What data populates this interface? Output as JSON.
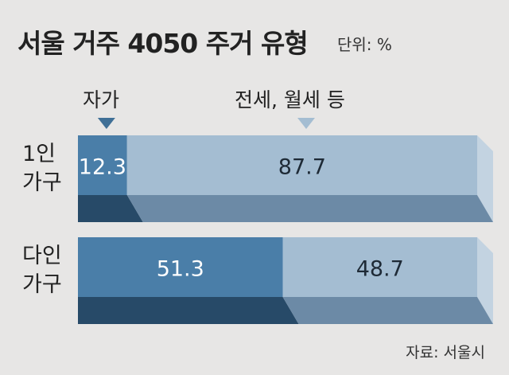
{
  "title": "서울 거주 4050 주거 유형",
  "unit": "단위: %",
  "source": "자료: 서울시",
  "colors": {
    "own_face": "#4a7ea8",
    "own_bottom": "#274a68",
    "rent_face": "#a4bdd2",
    "rent_bottom": "#6c8aa6",
    "rent_side": "#c3d3e1",
    "marker_own": "#3f6f96",
    "marker_rent": "#a4bdd2"
  },
  "chart_data": {
    "type": "bar",
    "stacked": true,
    "orientation": "horizontal",
    "categories": [
      "1인 가구",
      "다인 가구"
    ],
    "category_lines": [
      [
        "1인",
        "가구"
      ],
      [
        "다인",
        "가구"
      ]
    ],
    "series": [
      {
        "name": "자가",
        "values": [
          12.3,
          51.3
        ]
      },
      {
        "name": "전세, 월세 등",
        "values": [
          87.7,
          48.7
        ]
      }
    ],
    "value_labels": [
      [
        "12.3",
        "87.7"
      ],
      [
        "51.3",
        "48.7"
      ]
    ],
    "xlim": [
      0,
      100
    ],
    "legend": "top"
  }
}
